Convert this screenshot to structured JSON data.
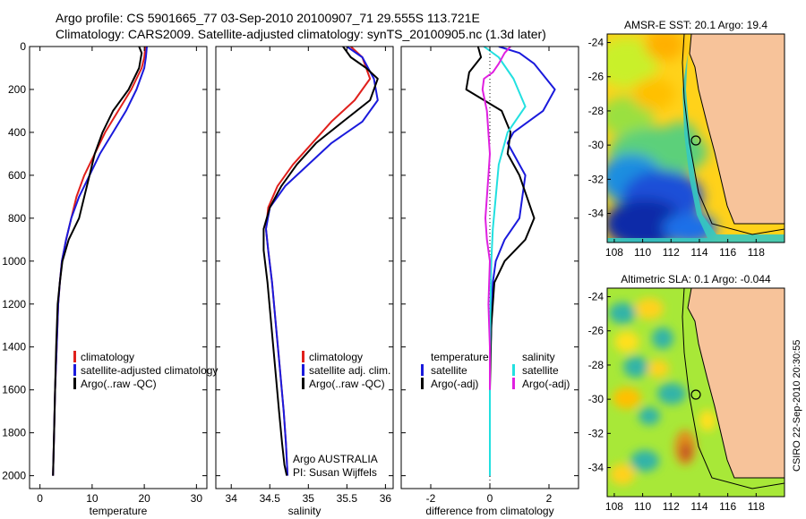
{
  "header": {
    "line1": "Argo profile: CS 5901665_77 03-Sep-2010 20100907_71 29.555S 113.721E",
    "line2": "Climatology: CARS2009. Satellite-adjusted climatology: synTS_20100905.nc (1.3d later)"
  },
  "colors": {
    "climatology": "#e0201c",
    "satellite": "#1a1adc",
    "argo": "#000000",
    "satellite_salinity": "#22e0e0",
    "argo_adj_salinity": "#e020e0",
    "land": "#f7c39a"
  },
  "chart_data": [
    {
      "type": "line",
      "id": "temperature",
      "xlabel": "temperature",
      "ylabel": "",
      "xlim": [
        -2,
        32
      ],
      "ylim": [
        2060,
        0
      ],
      "xticks": [
        0,
        10,
        20,
        30
      ],
      "yticks": [
        0,
        200,
        400,
        600,
        800,
        1000,
        1200,
        1400,
        1600,
        1800,
        2000
      ],
      "legend_position": "lower-right",
      "series": [
        {
          "name": "climatology",
          "color": "#e0201c",
          "x": [
            20.2,
            20.0,
            19.5,
            17.5,
            15.0,
            12.5,
            10.5,
            8.5,
            7.0,
            6.0,
            5.0,
            4.2,
            3.8,
            3.5,
            3.2,
            2.9,
            2.7,
            2.6,
            2.5
          ],
          "y": [
            0,
            50,
            100,
            200,
            300,
            400,
            500,
            600,
            700,
            800,
            900,
            1000,
            1100,
            1200,
            1400,
            1600,
            1800,
            1900,
            2000
          ]
        },
        {
          "name": "satellite-adjusted climatology",
          "color": "#1a1adc",
          "x": [
            20.5,
            20.3,
            20.0,
            18.5,
            16.5,
            14.0,
            11.5,
            9.5,
            7.5,
            6.0,
            5.0,
            4.2,
            3.8,
            3.5,
            3.2,
            2.9,
            2.7,
            2.6,
            2.5
          ],
          "y": [
            0,
            50,
            100,
            200,
            300,
            400,
            500,
            600,
            700,
            800,
            900,
            1000,
            1100,
            1200,
            1400,
            1600,
            1800,
            1900,
            2000
          ]
        },
        {
          "name": "Argo(..raw -QC)",
          "color": "#000000",
          "x": [
            19.0,
            19.5,
            19.0,
            17.0,
            14.0,
            12.0,
            10.5,
            9.5,
            8.5,
            7.5,
            5.5,
            4.3,
            3.8,
            3.4,
            3.1,
            2.9,
            2.7,
            2.5
          ],
          "y": [
            0,
            30,
            100,
            200,
            300,
            400,
            500,
            600,
            700,
            800,
            900,
            1000,
            1100,
            1200,
            1400,
            1600,
            1800,
            2000
          ]
        }
      ]
    },
    {
      "type": "line",
      "id": "salinity",
      "xlabel": "salinity",
      "ylabel": "",
      "xlim": [
        33.8,
        36.1
      ],
      "ylim": [
        2060,
        0
      ],
      "xticks": [
        34,
        34.5,
        35,
        35.5,
        36
      ],
      "legend_position": "lower-right",
      "series": [
        {
          "name": "climatology",
          "color": "#e0201c",
          "x": [
            35.55,
            35.7,
            35.8,
            35.6,
            35.3,
            35.05,
            34.8,
            34.6,
            34.48,
            34.45,
            34.48,
            34.53,
            34.58,
            34.63,
            34.68,
            34.71,
            34.73
          ],
          "y": [
            0,
            50,
            150,
            250,
            350,
            450,
            550,
            650,
            750,
            850,
            950,
            1100,
            1300,
            1500,
            1700,
            1850,
            2000
          ]
        },
        {
          "name": "satellite adj. clim.",
          "color": "#1a1adc",
          "x": [
            35.5,
            35.7,
            35.85,
            35.9,
            35.7,
            35.3,
            35.0,
            34.7,
            34.5,
            34.45,
            34.48,
            34.53,
            34.58,
            34.63,
            34.68,
            34.71,
            34.73
          ],
          "y": [
            0,
            50,
            150,
            250,
            350,
            450,
            550,
            650,
            750,
            850,
            950,
            1100,
            1300,
            1500,
            1700,
            1850,
            2000
          ]
        },
        {
          "name": "Argo(..raw -QC)",
          "color": "#000000",
          "x": [
            35.45,
            35.55,
            35.75,
            35.9,
            35.8,
            35.45,
            35.1,
            34.85,
            34.65,
            34.5,
            34.42,
            34.42,
            34.47,
            34.52,
            34.57,
            34.62,
            34.66,
            34.69,
            34.72
          ],
          "y": [
            0,
            50,
            100,
            150,
            250,
            350,
            450,
            550,
            650,
            750,
            850,
            950,
            1100,
            1300,
            1500,
            1700,
            1850,
            1950,
            2000
          ]
        }
      ],
      "annotations": [
        "Argo AUSTRALIA",
        "PI: Susan Wijffels"
      ]
    },
    {
      "type": "line",
      "id": "difference",
      "xlabel": "difference from climatology",
      "ylabel": "",
      "xlim": [
        -3,
        3
      ],
      "ylim": [
        2060,
        0
      ],
      "xticks": [
        -2,
        0,
        2
      ],
      "zero_line": "dotted",
      "legend_position": "lower-center",
      "legend_groups": [
        "temperature",
        "salinity"
      ],
      "series": [
        {
          "name": "satellite",
          "group": "temperature",
          "color": "#1a1adc",
          "x": [
            0.3,
            1.0,
            1.5,
            2.2,
            1.8,
            0.8,
            0.6,
            0.8,
            1.2,
            1.0,
            0.5,
            0.2,
            0.1,
            0.05,
            0.0,
            0.0,
            0.0
          ],
          "y": [
            0,
            30,
            80,
            200,
            300,
            400,
            450,
            500,
            600,
            800,
            900,
            1000,
            1100,
            1300,
            1500,
            1800,
            2000
          ]
        },
        {
          "name": "Argo(-adj)",
          "group": "temperature",
          "color": "#000000",
          "x": [
            -0.4,
            -0.3,
            -0.7,
            -0.8,
            0.4,
            0.7,
            0.6,
            0.8,
            1.0,
            1.5,
            1.2,
            0.5,
            0.15,
            0.05,
            0.0,
            0.0
          ],
          "y": [
            0,
            50,
            120,
            200,
            300,
            400,
            500,
            550,
            600,
            800,
            900,
            1000,
            1100,
            1300,
            1600,
            2000
          ]
        },
        {
          "name": "satellite",
          "group": "salinity",
          "color": "#22e0e0",
          "x": [
            -0.2,
            0.3,
            0.8,
            1.2,
            0.6,
            0.3,
            0.2,
            0.1,
            0.05,
            0.02,
            0.0,
            0.0,
            0.0
          ],
          "y": [
            0,
            50,
            150,
            280,
            400,
            550,
            700,
            850,
            1000,
            1200,
            1500,
            1800,
            2000
          ]
        },
        {
          "name": "Argo(-adj)",
          "group": "salinity",
          "color": "#e020e0",
          "x": [
            0.7,
            0.5,
            0.3,
            0.1,
            -0.2,
            -0.25,
            -0.1,
            0.0,
            -0.05,
            -0.15,
            -0.1,
            0.0,
            -0.05,
            0.0,
            0.0
          ],
          "y": [
            0,
            30,
            80,
            120,
            150,
            200,
            300,
            500,
            600,
            800,
            900,
            1000,
            1200,
            1400,
            1600
          ]
        }
      ]
    },
    {
      "type": "heatmap",
      "id": "sst-map",
      "title": "AMSR-E SST: 20.1  Argo: 19.4",
      "xlim": [
        107.5,
        120
      ],
      "ylim": [
        -35.7,
        -23.5
      ],
      "xticks": [
        108,
        110,
        112,
        114,
        116,
        118
      ],
      "yticks": [
        -24,
        -26,
        -28,
        -30,
        -32,
        -34
      ],
      "float_location": {
        "lon": 113.721,
        "lat": -29.555
      }
    },
    {
      "type": "heatmap",
      "id": "sla-map",
      "title": "Altimetric SLA: 0.1  Argo: -0.044",
      "xlim": [
        107.5,
        120
      ],
      "ylim": [
        -35.7,
        -23.5
      ],
      "xticks": [
        108,
        110,
        112,
        114,
        116,
        118
      ],
      "yticks": [
        -24,
        -26,
        -28,
        -30,
        -32,
        -34
      ],
      "float_location": {
        "lon": 113.721,
        "lat": -29.555
      }
    }
  ],
  "footer": {
    "credit": "CSIRO 22-Sep-2010 20:30:55"
  }
}
